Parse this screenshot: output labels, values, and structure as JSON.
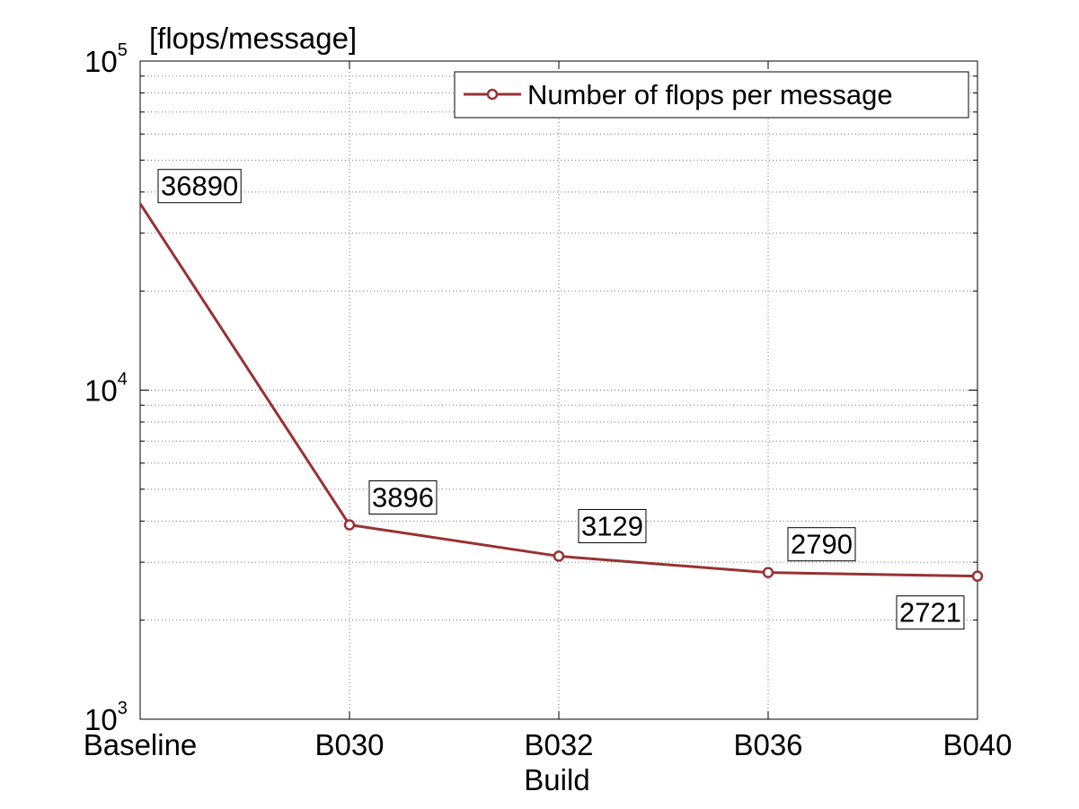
{
  "chart_data": {
    "type": "line",
    "xlabel": "Build",
    "ylabel": "[flops/message]",
    "categories": [
      "Baseline",
      "B030",
      "B032",
      "B036",
      "B040"
    ],
    "yscale": "log",
    "ylim": [
      1000,
      100000
    ],
    "ytick_labels": [
      {
        "base": "10",
        "exp": "3"
      },
      {
        "base": "10",
        "exp": "4"
      },
      {
        "base": "10",
        "exp": "5"
      }
    ],
    "grid": true,
    "legend_position": "top-right",
    "series": [
      {
        "name": "Number of flops per message",
        "color": "#983232",
        "values": [
          36890,
          3896,
          3129,
          2790,
          2721
        ],
        "labels": [
          "36890",
          "3896",
          "3129",
          "2790",
          "2721"
        ]
      }
    ]
  }
}
